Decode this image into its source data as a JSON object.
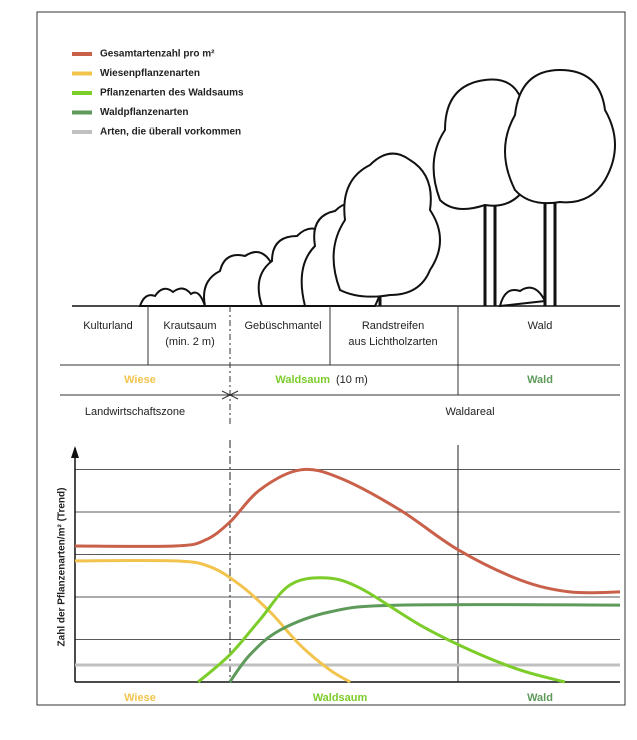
{
  "chart_data": {
    "type": "line",
    "y_label": "Zahl der Pflanzenarten/m² (Trend)",
    "x_zones": [
      "Wiese",
      "Waldsaum",
      "Wald"
    ],
    "xlim": [
      0,
      100
    ],
    "ylim": [
      0,
      5
    ],
    "series": [
      {
        "name": "Gesamtartenzahl pro m²",
        "color": "#c9604a",
        "x": [
          0,
          18.3,
          23.9,
          28.4,
          33.9,
          41.3,
          48.6,
          59.6,
          70.3,
          81.7,
          90.8,
          100
        ],
        "values": [
          3.2,
          3.2,
          3.34,
          3.76,
          4.52,
          4.99,
          4.8,
          4.05,
          3.11,
          2.4,
          2.12,
          2.12
        ]
      },
      {
        "name": "Wiesenpflanzenarten",
        "color": "#f2c44e",
        "x": [
          0,
          18.3,
          24.8,
          30.3,
          35.8,
          41.3,
          46.8,
          50.5
        ],
        "values": [
          2.85,
          2.85,
          2.71,
          2.28,
          1.65,
          0.87,
          0.28,
          0
        ]
      },
      {
        "name": "Pflanzenarten des Waldsaums",
        "color": "#7ccc2a",
        "x": [
          22.6,
          28.4,
          33.9,
          39.4,
          45.9,
          52.3,
          63.3,
          72.5,
          81.7,
          89.9
        ],
        "values": [
          0,
          0.64,
          1.46,
          2.28,
          2.45,
          2.21,
          1.34,
          0.75,
          0.28,
          0
        ]
      },
      {
        "name": "Waldpflanzenarten",
        "color": "#5e9a5a",
        "x": [
          28.4,
          32.1,
          37.6,
          46.8,
          59.6,
          100
        ],
        "values": [
          0,
          0.64,
          1.22,
          1.65,
          1.81,
          1.81
        ]
      },
      {
        "name": "Arten, die überall vorkommen",
        "color": "#c0c0c0",
        "x": [
          0,
          100
        ],
        "values": [
          0.4,
          0.4
        ]
      }
    ]
  },
  "transect": {
    "zones": [
      {
        "label": "Kulturland"
      },
      {
        "label": "Krautsaum",
        "sub": "(min. 2 m)"
      },
      {
        "label": "Gebüschmantel"
      },
      {
        "label": "Randstreifen",
        "sub": "aus Lichtholzarten"
      },
      {
        "label": "Wald"
      }
    ],
    "belts": [
      {
        "label": "Wiese"
      },
      {
        "label": "Waldsaum",
        "note": "(10 m)"
      },
      {
        "label": "Wald"
      }
    ],
    "areas": [
      "Landwirtschaftszone",
      "Waldareal"
    ]
  }
}
